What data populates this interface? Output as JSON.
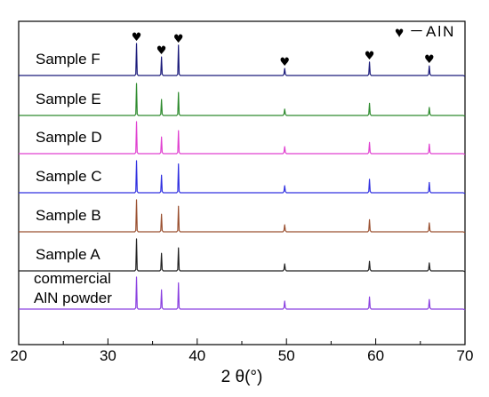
{
  "chart_data": {
    "type": "line",
    "xlabel": "2 θ(°)",
    "ylabel": "",
    "xlim": [
      20,
      70
    ],
    "x_ticks": [
      "20",
      "30",
      "40",
      "50",
      "60",
      "70"
    ],
    "grid": false,
    "legend": {
      "marker": "♥",
      "text": "－AlN",
      "placement": "top-right"
    },
    "peaks": [
      {
        "x": 33.2,
        "marked": true
      },
      {
        "x": 36.0,
        "marked": true
      },
      {
        "x": 37.9,
        "marked": true
      },
      {
        "x": 49.8,
        "marked": true
      },
      {
        "x": 59.3,
        "marked": true
      },
      {
        "x": 66.0,
        "marked": true
      }
    ],
    "series": [
      {
        "name": "Sample F",
        "color": "#1a1a7a",
        "intensities": [
          1.0,
          0.58,
          0.95,
          0.22,
          0.42,
          0.3
        ]
      },
      {
        "name": "Sample E",
        "color": "#2e8b2e",
        "intensities": [
          1.0,
          0.5,
          0.72,
          0.2,
          0.38,
          0.25
        ]
      },
      {
        "name": "Sample D",
        "color": "#e040d0",
        "intensities": [
          1.0,
          0.52,
          0.72,
          0.22,
          0.35,
          0.3
        ]
      },
      {
        "name": "Sample C",
        "color": "#3030e0",
        "intensities": [
          1.0,
          0.55,
          0.9,
          0.22,
          0.42,
          0.32
        ]
      },
      {
        "name": "Sample B",
        "color": "#9a5030",
        "intensities": [
          1.0,
          0.55,
          0.8,
          0.22,
          0.38,
          0.28
        ]
      },
      {
        "name": "Sample A",
        "color": "#222222",
        "intensities": [
          1.0,
          0.55,
          0.72,
          0.22,
          0.3,
          0.25
        ]
      },
      {
        "name": "commercial AlN powder",
        "color": "#8a40e0",
        "intensities": [
          1.0,
          0.6,
          0.82,
          0.25,
          0.38,
          0.3
        ]
      }
    ]
  }
}
